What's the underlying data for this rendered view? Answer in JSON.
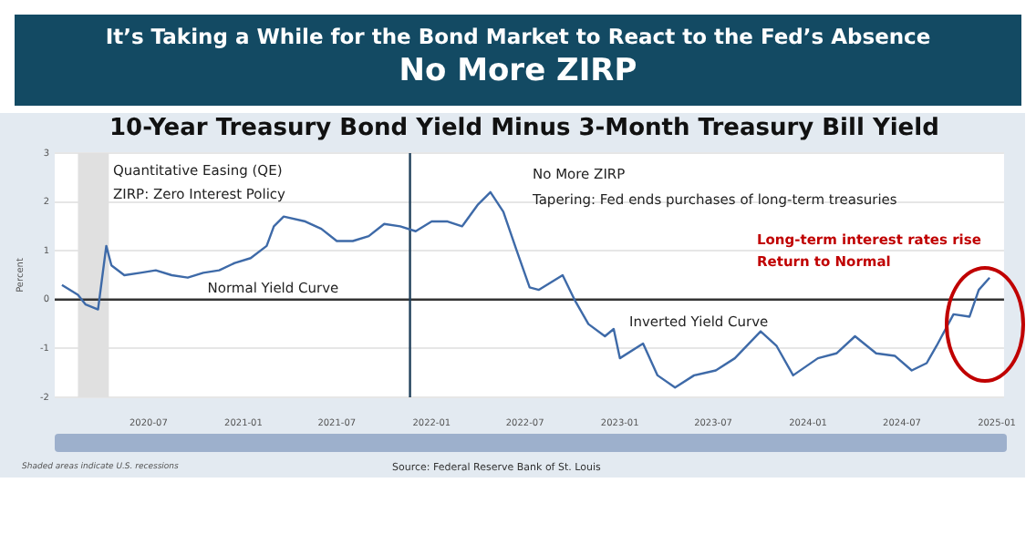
{
  "chart_data": {
    "type": "line",
    "title": "It’s Taking a While for the Bond Market to React to the Fed’s Absence",
    "subtitle": "No More ZIRP",
    "ylabel": "Percent",
    "x": [
      "2020-01-15",
      "2020-02-15",
      "2020-03-01",
      "2020-03-25",
      "2020-04-10",
      "2020-04-20",
      "2020-05-15",
      "2020-06-15",
      "2020-07-15",
      "2020-08-15",
      "2020-09-15",
      "2020-10-15",
      "2020-11-15",
      "2020-12-15",
      "2021-01-15",
      "2021-02-15",
      "2021-03-01",
      "2021-03-20",
      "2021-05-01",
      "2021-06-01",
      "2021-07-01",
      "2021-08-01",
      "2021-09-01",
      "2021-10-01",
      "2021-11-01",
      "2021-12-01",
      "2022-01-01",
      "2022-02-01",
      "2022-03-01",
      "2022-04-01",
      "2022-04-25",
      "2022-05-20",
      "2022-06-15",
      "2022-07-10",
      "2022-07-28",
      "2022-09-12",
      "2022-10-05",
      "2022-11-01",
      "2022-12-03",
      "2022-12-20",
      "2023-01-01",
      "2023-02-15",
      "2023-03-15",
      "2023-04-18",
      "2023-05-25",
      "2023-07-06",
      "2023-08-12",
      "2023-10-01",
      "2023-11-01",
      "2023-12-03",
      "2024-01-20",
      "2024-02-25",
      "2024-04-01",
      "2024-05-12",
      "2024-06-17",
      "2024-07-20",
      "2024-08-18",
      "2024-09-06",
      "2024-10-09",
      "2024-11-09",
      "2024-11-27",
      "2024-12-18"
    ],
    "series": [
      {
        "color": "#3e6aa8",
        "values": [
          0.3,
          0.1,
          -0.1,
          -0.2,
          1.1,
          0.7,
          0.5,
          0.55,
          0.6,
          0.5,
          0.45,
          0.55,
          0.6,
          0.75,
          0.85,
          1.1,
          1.5,
          1.7,
          1.6,
          1.45,
          1.2,
          1.2,
          1.3,
          1.55,
          1.5,
          1.4,
          1.6,
          1.6,
          1.5,
          1.95,
          2.2,
          1.8,
          1.0,
          0.25,
          0.2,
          0.5,
          0.0,
          -0.5,
          -0.75,
          -0.6,
          -1.2,
          -0.9,
          -1.55,
          -1.8,
          -1.55,
          -1.45,
          -1.2,
          -0.65,
          -0.95,
          -1.55,
          -1.2,
          -1.1,
          -0.75,
          -1.1,
          -1.15,
          -1.45,
          -1.3,
          -0.95,
          -0.3,
          -0.35,
          0.2,
          0.45
        ]
      }
    ],
    "xlim": [
      "2020-01-01",
      "2025-01-15"
    ],
    "xticks": [
      "2020-07",
      "2021-01",
      "2021-07",
      "2022-01",
      "2022-07",
      "2023-01",
      "2023-07",
      "2024-01",
      "2024-07",
      "2025-01"
    ],
    "ylim": [
      -2,
      3
    ],
    "yticks": [
      -2,
      -1,
      0,
      1,
      2,
      3
    ],
    "grid": "y",
    "legend": false,
    "marker": "none",
    "line_style": "solid",
    "ref_lines": [
      {
        "axis": "y",
        "value": 0,
        "label": "Normal Yield Curve",
        "color": "#333333"
      },
      {
        "axis": "x",
        "value": "2021-11-20",
        "label": null,
        "color": "#1f3f5a"
      }
    ],
    "bands": [
      {
        "axis": "x",
        "from": "2020-02-15",
        "to": "2020-04-15",
        "label": null,
        "color": "#e0e0e0"
      }
    ],
    "annotations": [
      "10-Year Treasury Bond Yield Minus 3-Month Treasury Bill Yield",
      "Quantitative Easing (QE)",
      "ZIRP: Zero Interest Policy",
      "No More ZIRP",
      "Tapering: Fed ends purchases of long-term treasuries",
      "Long-term interest rates rise",
      "Return to Normal",
      "Inverted Yield Curve",
      "Shaded areas indicate U.S. recessions",
      "Source: Federal Reserve Bank of St. Louis"
    ]
  }
}
